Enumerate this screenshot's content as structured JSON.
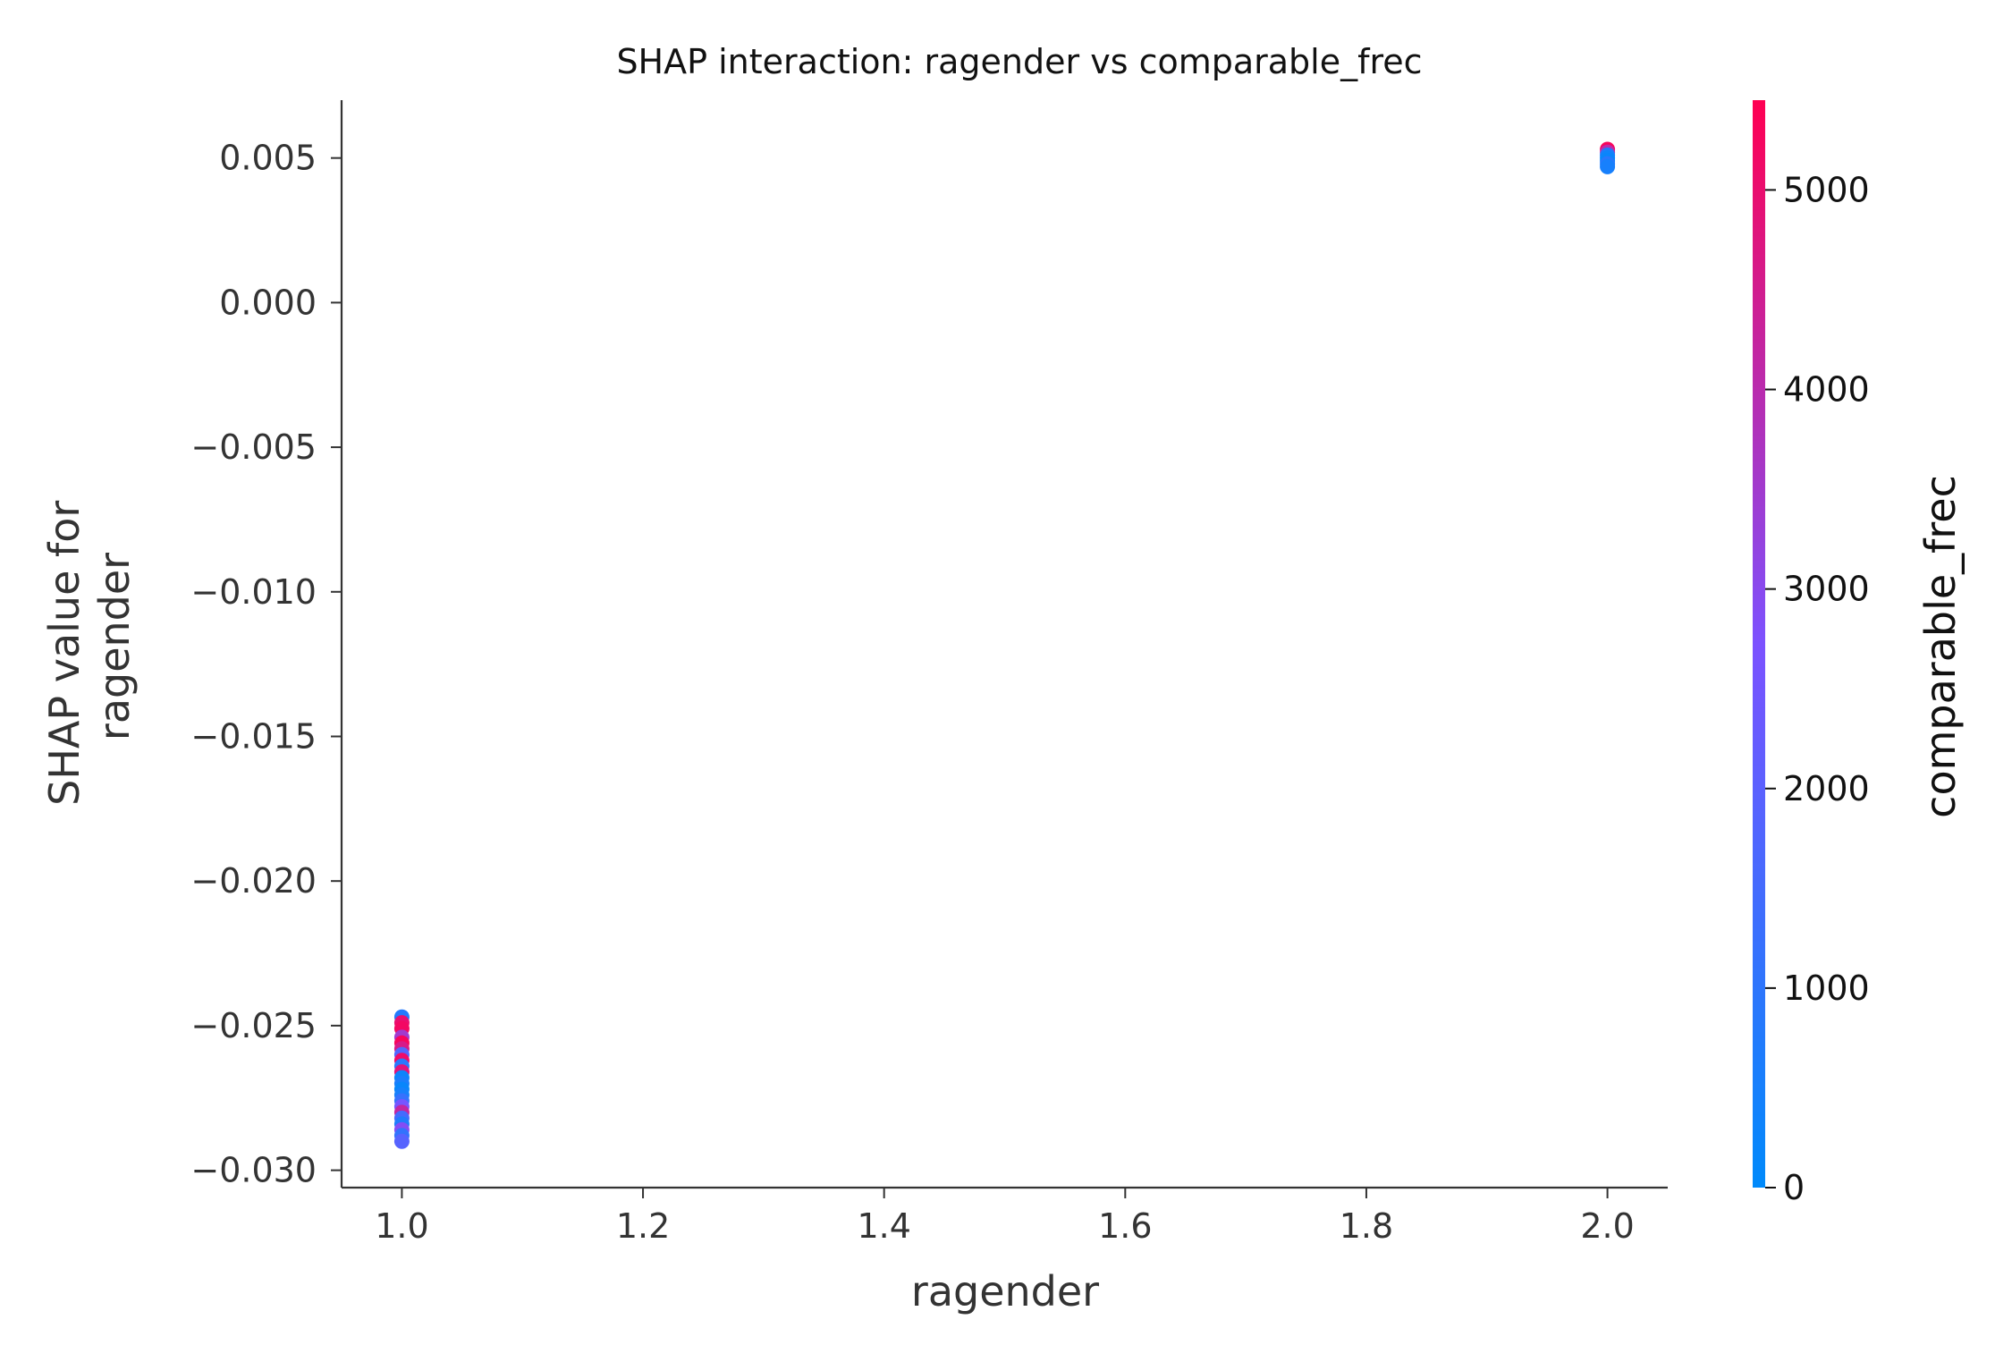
{
  "chart_data": {
    "type": "scatter",
    "title": "SHAP interaction: ragender vs comparable_frec",
    "xlabel": "ragender",
    "ylabel": [
      "SHAP value for",
      "ragender"
    ],
    "xlim": [
      0.95,
      2.05
    ],
    "ylim": [
      -0.0306,
      0.007
    ],
    "xticks": [
      1.0,
      1.2,
      1.4,
      1.6,
      1.8,
      2.0
    ],
    "xtick_labels": [
      "1.0",
      "1.2",
      "1.4",
      "1.6",
      "1.8",
      "2.0"
    ],
    "yticks": [
      0.005,
      0.0,
      -0.005,
      -0.01,
      -0.015,
      -0.02,
      -0.025,
      -0.03
    ],
    "ytick_labels": [
      "0.005",
      "0.000",
      "−0.005",
      "−0.010",
      "−0.015",
      "−0.020",
      "−0.025",
      "−0.030"
    ],
    "grid": false,
    "colorbar": {
      "label": "comparable_frec",
      "range": [
        0,
        5450
      ],
      "ticks": [
        0,
        1000,
        2000,
        3000,
        4000,
        5000
      ],
      "tick_labels": [
        "0",
        "1000",
        "2000",
        "3000",
        "4000",
        "5000"
      ],
      "color_low": "#008afb",
      "color_mid": "#7c52ff",
      "color_high": "#ff0052"
    },
    "points": [
      {
        "x": 1.0,
        "y": -0.0247,
        "c": 800
      },
      {
        "x": 1.0,
        "y": -0.0249,
        "c": 5000
      },
      {
        "x": 1.0,
        "y": -0.0251,
        "c": 5200
      },
      {
        "x": 1.0,
        "y": -0.0254,
        "c": 3500
      },
      {
        "x": 1.0,
        "y": -0.0256,
        "c": 5300
      },
      {
        "x": 1.0,
        "y": -0.0258,
        "c": 4600
      },
      {
        "x": 1.0,
        "y": -0.026,
        "c": 1800
      },
      {
        "x": 1.0,
        "y": -0.0262,
        "c": 5100
      },
      {
        "x": 1.0,
        "y": -0.0264,
        "c": 900
      },
      {
        "x": 1.0,
        "y": -0.0266,
        "c": 4800
      },
      {
        "x": 1.0,
        "y": -0.0268,
        "c": 300
      },
      {
        "x": 1.0,
        "y": -0.027,
        "c": 600
      },
      {
        "x": 1.0,
        "y": -0.0272,
        "c": 200
      },
      {
        "x": 1.0,
        "y": -0.0274,
        "c": 500
      },
      {
        "x": 1.0,
        "y": -0.0276,
        "c": 1200
      },
      {
        "x": 1.0,
        "y": -0.0278,
        "c": 2600
      },
      {
        "x": 1.0,
        "y": -0.028,
        "c": 4200
      },
      {
        "x": 1.0,
        "y": -0.0282,
        "c": 1500
      },
      {
        "x": 1.0,
        "y": -0.0284,
        "c": 700
      },
      {
        "x": 1.0,
        "y": -0.0286,
        "c": 2900
      },
      {
        "x": 1.0,
        "y": -0.0288,
        "c": 1100
      },
      {
        "x": 1.0,
        "y": -0.029,
        "c": 1900
      },
      {
        "x": 2.0,
        "y": 0.0053,
        "c": 5300
      },
      {
        "x": 2.0,
        "y": 0.0052,
        "c": 4000
      },
      {
        "x": 2.0,
        "y": 0.0051,
        "c": 700
      },
      {
        "x": 2.0,
        "y": 0.005,
        "c": 300
      },
      {
        "x": 2.0,
        "y": 0.0049,
        "c": 200
      },
      {
        "x": 2.0,
        "y": 0.0048,
        "c": 900
      },
      {
        "x": 2.0,
        "y": 0.0047,
        "c": 500
      }
    ]
  }
}
